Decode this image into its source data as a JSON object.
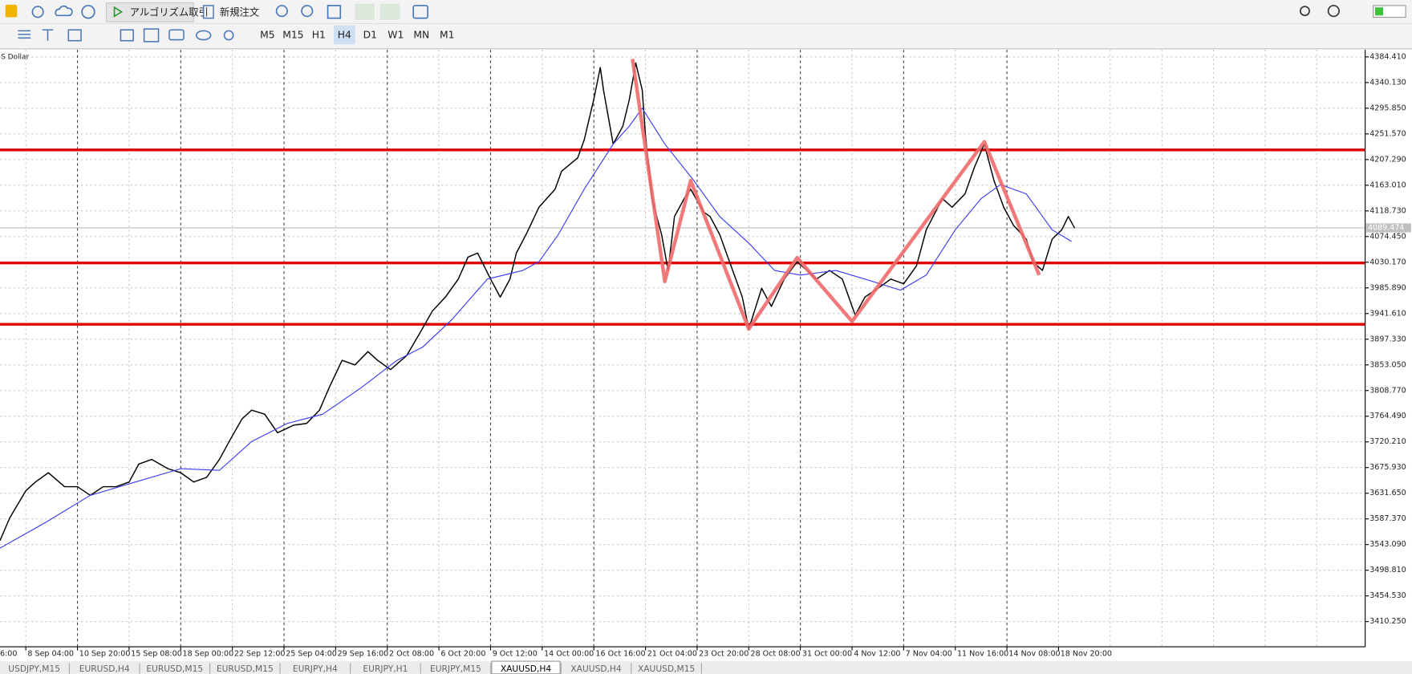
{
  "toolbar": {
    "algo_trading": "アルゴリズム取引",
    "new_order": "新規注文",
    "timeframes": [
      "M5",
      "M15",
      "H1",
      "H4",
      "D1",
      "W1",
      "MN",
      "M1"
    ],
    "active_timeframe": "H4"
  },
  "chart_data": {
    "type": "line",
    "symbol_label": "S Dollar",
    "xlim": [
      0,
      423
    ],
    "ylim": [
      3366.7,
      4396.8
    ],
    "grid": true,
    "series": [
      {
        "color": "#000000",
        "x": [
          0,
          3,
          8,
          11,
          15,
          20,
          24,
          28,
          32,
          36,
          40,
          43,
          47,
          52,
          56,
          60,
          64,
          68,
          71,
          75,
          78,
          82,
          86,
          91,
          95,
          99,
          102,
          106,
          110,
          114,
          117,
          121,
          126,
          130,
          134,
          138,
          142,
          145,
          148,
          152,
          155,
          158,
          160,
          163,
          167,
          172,
          174,
          179,
          181,
          184,
          186,
          187,
          190,
          193,
          195,
          197,
          199,
          200,
          202,
          205,
          207,
          209,
          212,
          214,
          218,
          220,
          223,
          227,
          230,
          232,
          236,
          239,
          243,
          247,
          250,
          253,
          257,
          261,
          265,
          268,
          272,
          276,
          280,
          284,
          287,
          292,
          295,
          299,
          302,
          305,
          308,
          311,
          314,
          318,
          320,
          323,
          326,
          329,
          331,
          333
        ],
        "values": [
          3550,
          3589,
          3636,
          3651,
          3667,
          3643,
          3643,
          3628,
          3643,
          3643,
          3651,
          3682,
          3690,
          3674,
          3667,
          3651,
          3659,
          3690,
          3721,
          3760,
          3775,
          3768,
          3736,
          3749,
          3752,
          3775,
          3814,
          3861,
          3853,
          3876,
          3861,
          3845,
          3869,
          3907,
          3946,
          3970,
          4001,
          4039,
          4046,
          4001,
          3970,
          4001,
          4046,
          4078,
          4125,
          4156,
          4187,
          4210,
          4241,
          4311,
          4366,
          4327,
          4234,
          4265,
          4311,
          4374,
          4327,
          4249,
          4140,
          4078,
          4016,
          4109,
          4140,
          4156,
          4117,
          4109,
          4078,
          4016,
          3970,
          3915,
          3985,
          3954,
          4001,
          4031,
          4016,
          4001,
          4016,
          4001,
          3939,
          3970,
          3985,
          4001,
          3993,
          4024,
          4086,
          4140,
          4125,
          4148,
          4195,
          4234,
          4171,
          4125,
          4094,
          4070,
          4031,
          4016,
          4070,
          4086,
          4109,
          4089
        ]
      },
      {
        "color": "#3a3af0",
        "x": [
          0,
          14,
          28,
          42,
          56,
          68,
          78,
          89,
          100,
          112,
          123,
          131,
          140,
          151,
          162,
          167,
          173,
          181,
          190,
          195,
          199,
          206,
          215,
          223,
          232,
          240,
          248,
          259,
          268,
          279,
          287,
          296,
          304,
          310,
          318,
          326,
          332
        ],
        "values": [
          3537,
          3581,
          3628,
          3651,
          3674,
          3671,
          3721,
          3752,
          3768,
          3814,
          3861,
          3884,
          3931,
          4001,
          4016,
          4031,
          4078,
          4156,
          4234,
          4265,
          4296,
          4234,
          4171,
          4109,
          4063,
          4016,
          4008,
          4016,
          4001,
          3982,
          4008,
          4086,
          4140,
          4164,
          4148,
          4086,
          4066
        ]
      }
    ],
    "levels": {
      "color": "#e00000",
      "values": [
        4224,
        4029,
        3923
      ]
    },
    "zigzag": {
      "color": "#f06a6a",
      "x": [
        196,
        206,
        214,
        232,
        247,
        264,
        305,
        322
      ],
      "values": [
        4381,
        3997,
        4171,
        3915,
        4038,
        3928,
        4238,
        4008
      ]
    },
    "current_price": 4089.474,
    "xticks": [
      {
        "value": -8,
        "label": "6:00"
      },
      {
        "value": 8,
        "label": "8 Sep 04:00"
      },
      {
        "value": 24,
        "label": "10 Sep 20:00"
      },
      {
        "value": 40,
        "label": "15 Sep 08:00"
      },
      {
        "value": 56,
        "label": "18 Sep 00:00"
      },
      {
        "value": 72,
        "label": "22 Sep 12:00"
      },
      {
        "value": 88,
        "label": "25 Sep 04:00"
      },
      {
        "value": 104,
        "label": "29 Sep 16:00"
      },
      {
        "value": 120,
        "label": "2 Oct 08:00"
      },
      {
        "value": 136,
        "label": "6 Oct 20:00"
      },
      {
        "value": 152,
        "label": "9 Oct 12:00"
      },
      {
        "value": 168,
        "label": "14 Oct 00:00"
      },
      {
        "value": 184,
        "label": "16 Oct 16:00"
      },
      {
        "value": 200,
        "label": "21 Oct 04:00"
      },
      {
        "value": 216,
        "label": "23 Oct 20:00"
      },
      {
        "value": 232,
        "label": "28 Oct 08:00"
      },
      {
        "value": 248,
        "label": "31 Oct 00:00"
      },
      {
        "value": 264,
        "label": "4 Nov 12:00"
      },
      {
        "value": 280,
        "label": "7 Nov 04:00"
      },
      {
        "value": 296,
        "label": "11 Nov 16:00"
      },
      {
        "value": 312,
        "label": "14 Nov 08:00"
      },
      {
        "value": 328,
        "label": "18 Nov 20:00"
      }
    ],
    "yticks": [
      {
        "value": 4384.41,
        "label": "4384.410"
      },
      {
        "value": 4340.13,
        "label": "4340.130"
      },
      {
        "value": 4295.85,
        "label": "4295.850"
      },
      {
        "value": 4251.57,
        "label": "4251.570"
      },
      {
        "value": 4207.29,
        "label": "4207.290"
      },
      {
        "value": 4163.01,
        "label": "4163.010"
      },
      {
        "value": 4118.73,
        "label": "4118.730"
      },
      {
        "value": 4074.45,
        "label": "4074.450"
      },
      {
        "value": 4030.17,
        "label": "4030.170"
      },
      {
        "value": 3985.89,
        "label": "3985.890"
      },
      {
        "value": 3941.61,
        "label": "3941.610"
      },
      {
        "value": 3897.33,
        "label": "3897.330"
      },
      {
        "value": 3853.05,
        "label": "3853.050"
      },
      {
        "value": 3808.77,
        "label": "3808.770"
      },
      {
        "value": 3764.49,
        "label": "3764.490"
      },
      {
        "value": 3720.21,
        "label": "3720.210"
      },
      {
        "value": 3675.93,
        "label": "3675.930"
      },
      {
        "value": 3631.65,
        "label": "3631.650"
      },
      {
        "value": 3587.37,
        "label": "3587.370"
      },
      {
        "value": 3543.09,
        "label": "3543.090"
      },
      {
        "value": 3498.81,
        "label": "3498.810"
      },
      {
        "value": 3454.53,
        "label": "3454.530"
      },
      {
        "value": 3410.25,
        "label": "3410.250"
      }
    ]
  },
  "tabs": {
    "items": [
      "USDJPY,M15",
      "EURUSD,H4",
      "EURUSD,M15",
      "EURUSD,M15",
      "EURJPY,H4",
      "EURJPY,H1",
      "EURJPY,M15",
      "XAUUSD,H4",
      "XAUUSD,H4",
      "XAUUSD,M15"
    ],
    "active": 7
  }
}
